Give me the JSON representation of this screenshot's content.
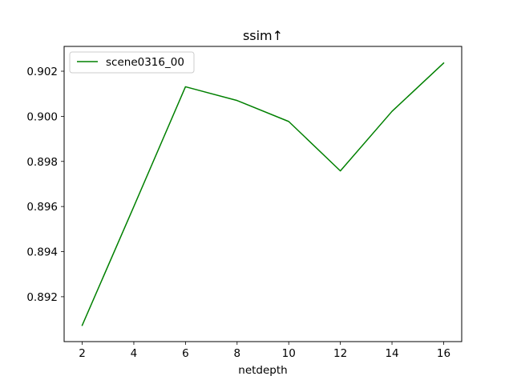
{
  "chart_data": {
    "type": "line",
    "title": "ssim↑",
    "xlabel": "netdepth",
    "ylabel": "",
    "x": [
      2,
      4,
      6,
      8,
      10,
      12,
      14,
      16
    ],
    "series": [
      {
        "name": "scene0316_00",
        "color": "#008000",
        "values": [
          0.89073,
          0.896,
          0.90131,
          0.9007,
          0.89977,
          0.89758,
          0.90022,
          0.90236
        ]
      }
    ],
    "xlim": [
      1.3,
      16.7
    ],
    "ylim": [
      0.89001,
      0.9031
    ],
    "xticks": [
      2,
      4,
      6,
      8,
      10,
      12,
      14,
      16
    ],
    "yticks": [
      0.892,
      0.894,
      0.896,
      0.898,
      0.9,
      0.902
    ],
    "xtick_labels": [
      "2",
      "4",
      "6",
      "8",
      "10",
      "12",
      "14",
      "16"
    ],
    "ytick_labels": [
      "0.892",
      "0.894",
      "0.896",
      "0.898",
      "0.900",
      "0.902"
    ],
    "grid": false,
    "legend_position": "top-left"
  }
}
